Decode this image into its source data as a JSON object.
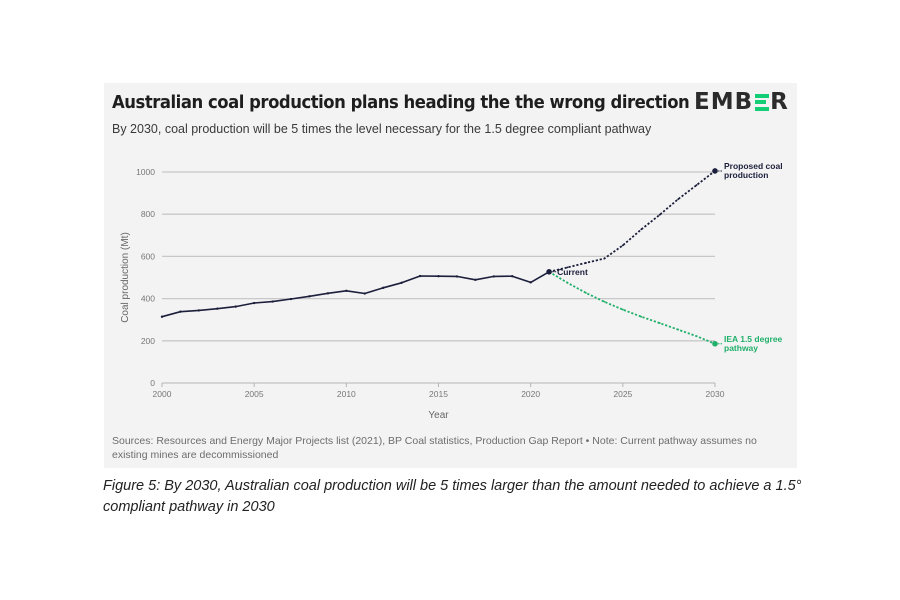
{
  "header": {
    "title": "Australian coal production plans heading the the wrong direction",
    "subtitle": "By 2030, coal production will be 5 times the level necessary for the 1.5 degree compliant pathway",
    "logo": {
      "left": "EMB",
      "middle": "E",
      "right": "R",
      "accent_color": "#13ce74"
    }
  },
  "sources": "Sources: Resources and Energy Major Projects list (2021), BP Coal statistics, Production Gap Report • Note: Current pathway assumes no existing mines are decommissioned",
  "caption": "Figure 5: By 2030, Australian coal production will be 5 times larger than the amount needed to achieve a 1.5° compliant pathway in 2030",
  "colors": {
    "historical": "#1b1f3b",
    "proposed": "#1b1f3b",
    "iea": "#20b06a",
    "grid": "#c8c8c8",
    "tick_text": "#777777",
    "panel_bg": "#f3f3f3"
  },
  "chart_data": {
    "type": "line",
    "title": "Australian coal production plans heading the the wrong direction",
    "subtitle": "By 2030, coal production will be 5 times the level necessary for the 1.5 degree compliant pathway",
    "xlabel": "Year",
    "ylabel": "Coal production (Mt)",
    "xlim": [
      2000,
      2030
    ],
    "ylim": [
      0,
      1000
    ],
    "xticks": [
      2000,
      2005,
      2010,
      2015,
      2020,
      2025,
      2030
    ],
    "yticks": [
      0,
      200,
      400,
      600,
      800,
      1000
    ],
    "grid": "horizontal",
    "series": [
      {
        "name": "Historical",
        "style": "solid",
        "x": [
          2000,
          2001,
          2002,
          2003,
          2004,
          2005,
          2006,
          2007,
          2008,
          2009,
          2010,
          2011,
          2012,
          2013,
          2014,
          2015,
          2016,
          2017,
          2018,
          2019,
          2020,
          2021
        ],
        "y": [
          314,
          338,
          344,
          352,
          362,
          379,
          386,
          398,
          411,
          425,
          437,
          424,
          451,
          475,
          507,
          506,
          505,
          489,
          505,
          506,
          477,
          527
        ]
      },
      {
        "name": "Proposed coal production",
        "label_lines": [
          "Proposed coal",
          "production"
        ],
        "style": "dotted",
        "x": [
          2021,
          2022,
          2023,
          2024,
          2025,
          2026,
          2027,
          2028,
          2029,
          2030
        ],
        "y": [
          527,
          548,
          569,
          590,
          652,
          728,
          797,
          871,
          938,
          1005
        ]
      },
      {
        "name": "IEA 1.5 degree pathway",
        "label_lines": [
          "IEA 1.5 degree",
          "pathway"
        ],
        "style": "dotted",
        "x": [
          2021,
          2022,
          2023,
          2024,
          2025,
          2026,
          2027,
          2028,
          2029,
          2030
        ],
        "y": [
          527,
          475,
          427,
          385,
          348,
          314,
          284,
          253,
          222,
          186
        ]
      }
    ],
    "annotations": [
      {
        "text": "Current",
        "x": 2021,
        "y": 527
      }
    ]
  }
}
